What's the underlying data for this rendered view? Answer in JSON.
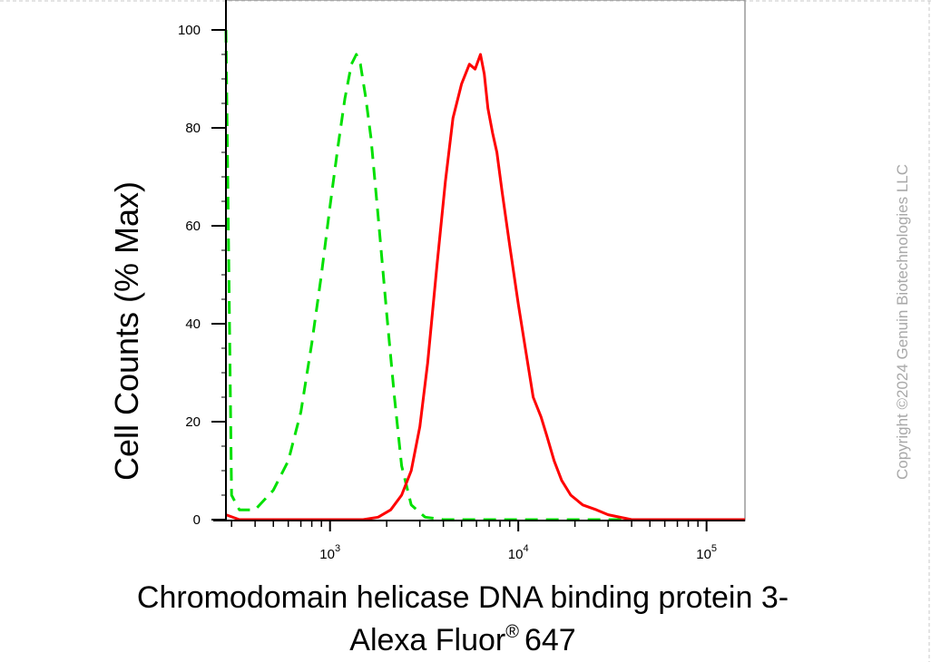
{
  "chart_data": {
    "type": "histogram",
    "xlabel_line1": "Chromodomain helicase DNA binding protein 3-",
    "xlabel_line2": "Alexa Fluor",
    "xlabel_line2_suffix": "647",
    "xlabel_superscript": "®",
    "ylabel": "Cell Counts (% Max)",
    "x_scale": "log",
    "xlim": [
      280,
      160000
    ],
    "ylim": [
      0,
      105
    ],
    "x_tick_labels": [
      {
        "value": 1000,
        "base": "10",
        "exp": "3"
      },
      {
        "value": 10000,
        "base": "10",
        "exp": "4"
      },
      {
        "value": 100000,
        "base": "10",
        "exp": "5"
      }
    ],
    "y_ticks": [
      0,
      20,
      40,
      60,
      80,
      100
    ],
    "grid": false,
    "series": [
      {
        "color": "#00e000",
        "style": "dashed",
        "points": [
          [
            280,
            100
          ],
          [
            300,
            5
          ],
          [
            330,
            2
          ],
          [
            400,
            2
          ],
          [
            500,
            6
          ],
          [
            600,
            12
          ],
          [
            700,
            22
          ],
          [
            800,
            36
          ],
          [
            900,
            50
          ],
          [
            1000,
            64
          ],
          [
            1100,
            76
          ],
          [
            1200,
            86
          ],
          [
            1300,
            93
          ],
          [
            1380,
            95
          ],
          [
            1450,
            93
          ],
          [
            1550,
            86
          ],
          [
            1650,
            78
          ],
          [
            1800,
            62
          ],
          [
            2000,
            42
          ],
          [
            2200,
            25
          ],
          [
            2400,
            11
          ],
          [
            2700,
            3
          ],
          [
            3200,
            0.5
          ],
          [
            4000,
            0
          ],
          [
            8000,
            0
          ],
          [
            160000,
            0
          ]
        ]
      },
      {
        "color": "#ff0000",
        "style": "solid",
        "points": [
          [
            280,
            1
          ],
          [
            330,
            0
          ],
          [
            1500,
            0
          ],
          [
            1800,
            0.5
          ],
          [
            2100,
            2
          ],
          [
            2400,
            5
          ],
          [
            2700,
            10
          ],
          [
            3000,
            19
          ],
          [
            3300,
            32
          ],
          [
            3700,
            52
          ],
          [
            4100,
            69
          ],
          [
            4500,
            82
          ],
          [
            5000,
            89
          ],
          [
            5500,
            93
          ],
          [
            5900,
            92
          ],
          [
            6300,
            95
          ],
          [
            6600,
            91
          ],
          [
            6900,
            84
          ],
          [
            7300,
            79
          ],
          [
            7700,
            75
          ],
          [
            8200,
            67
          ],
          [
            9000,
            56
          ],
          [
            10000,
            44
          ],
          [
            11000,
            34
          ],
          [
            12000,
            25
          ],
          [
            13200,
            21
          ],
          [
            14200,
            17
          ],
          [
            15500,
            12
          ],
          [
            17000,
            8
          ],
          [
            19000,
            5
          ],
          [
            22000,
            3
          ],
          [
            26000,
            2
          ],
          [
            30000,
            1
          ],
          [
            40000,
            0
          ],
          [
            160000,
            0
          ]
        ]
      }
    ]
  },
  "watermark": "Copyright ©2024 Genuin Biotechnologies LLC"
}
